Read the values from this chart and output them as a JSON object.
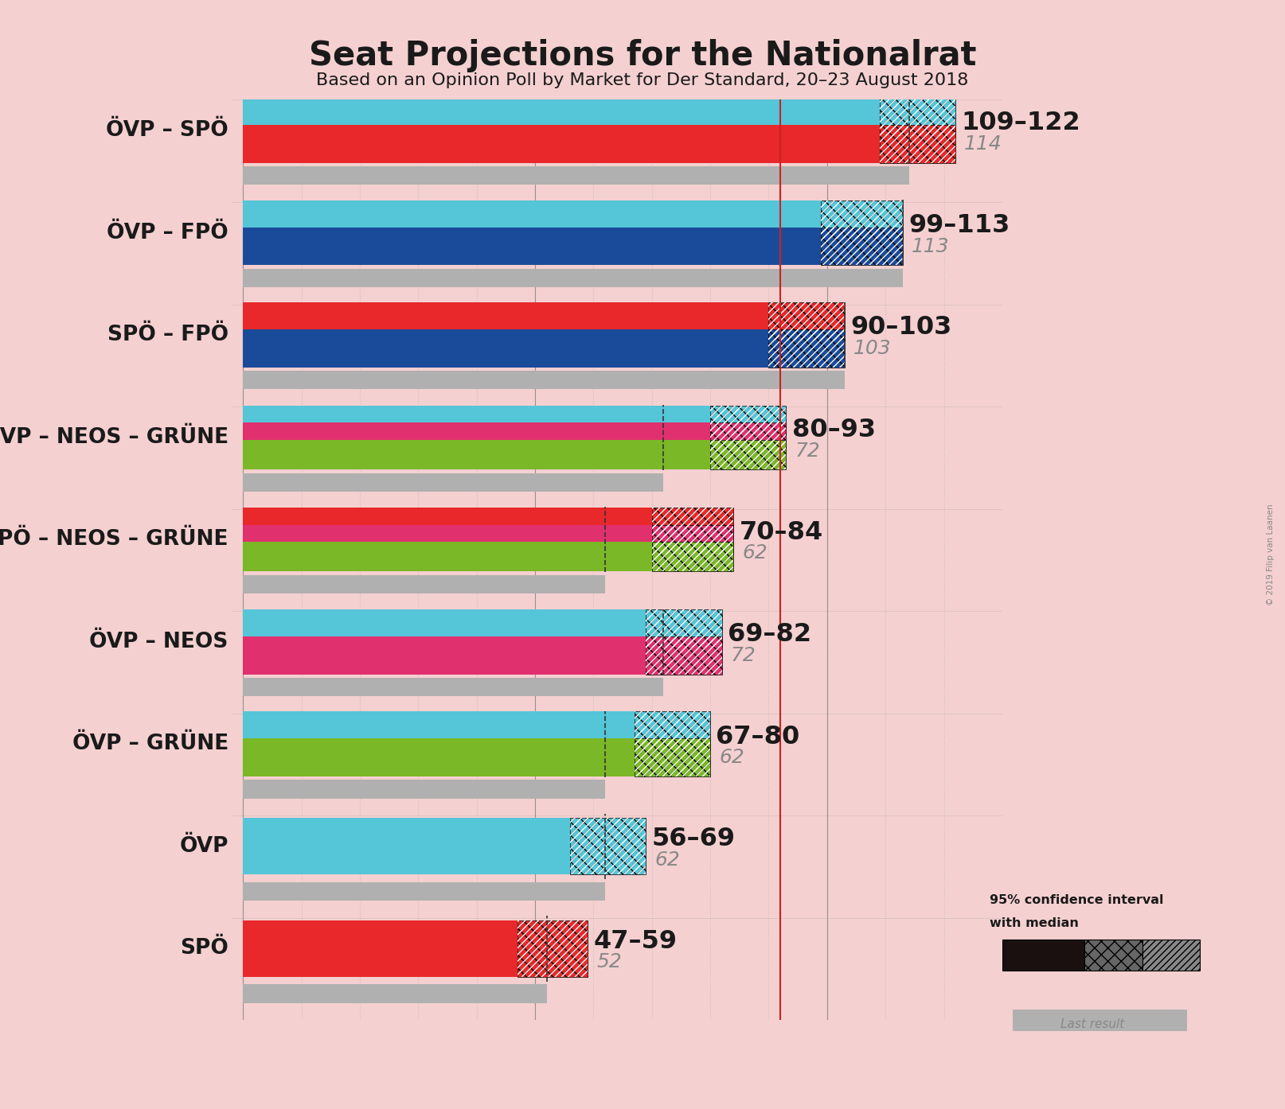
{
  "title": "Seat Projections for the Nationalrat",
  "subtitle": "Based on an Opinion Poll by Market for Der Standard, 20–23 August 2018",
  "copyright": "© 2019 Filip van Laanen",
  "background_color": "#f5d0d0",
  "coalitions": [
    {
      "name": "ÖVP – SPÖ",
      "ci_low": 109,
      "ci_high": 122,
      "median": 114,
      "last_result": 114,
      "parties": [
        "ÖVP",
        "SPÖ"
      ],
      "colors": [
        "#55c5d8",
        "#e8282a"
      ],
      "hatch_colors": [
        "#55c5d8",
        "#e8282a"
      ]
    },
    {
      "name": "ÖVP – FPÖ",
      "ci_low": 99,
      "ci_high": 113,
      "median": 113,
      "last_result": 113,
      "parties": [
        "ÖVP",
        "FPÖ"
      ],
      "colors": [
        "#55c5d8",
        "#1a4b9a"
      ],
      "hatch_colors": [
        "#55c5d8",
        "#1a4b9a"
      ]
    },
    {
      "name": "SPÖ – FPÖ",
      "ci_low": 90,
      "ci_high": 103,
      "median": 103,
      "last_result": 103,
      "parties": [
        "SPÖ",
        "FPÖ"
      ],
      "colors": [
        "#e8282a",
        "#1a4b9a"
      ],
      "hatch_colors": [
        "#e8282a",
        "#1a4b9a"
      ]
    },
    {
      "name": "ÖVP – NEOS – GRÜNE",
      "ci_low": 80,
      "ci_high": 93,
      "median": 72,
      "last_result": 72,
      "parties": [
        "ÖVP",
        "NEOS",
        "GRÜNE"
      ],
      "colors": [
        "#55c5d8",
        "#e0306e",
        "#7ab827"
      ],
      "hatch_colors": [
        "#55c5d8",
        "#e0306e",
        "#7ab827"
      ]
    },
    {
      "name": "SPÖ – NEOS – GRÜNE",
      "ci_low": 70,
      "ci_high": 84,
      "median": 62,
      "last_result": 62,
      "parties": [
        "SPÖ",
        "NEOS",
        "GRÜNE"
      ],
      "colors": [
        "#e8282a",
        "#e0306e",
        "#7ab827"
      ],
      "hatch_colors": [
        "#e8282a",
        "#e0306e",
        "#7ab827"
      ]
    },
    {
      "name": "ÖVP – NEOS",
      "ci_low": 69,
      "ci_high": 82,
      "median": 72,
      "last_result": 72,
      "parties": [
        "ÖVP",
        "NEOS"
      ],
      "colors": [
        "#55c5d8",
        "#e0306e"
      ],
      "hatch_colors": [
        "#55c5d8",
        "#e0306e"
      ]
    },
    {
      "name": "ÖVP – GRÜNE",
      "ci_low": 67,
      "ci_high": 80,
      "median": 62,
      "last_result": 62,
      "parties": [
        "ÖVP",
        "GRÜNE"
      ],
      "colors": [
        "#55c5d8",
        "#7ab827"
      ],
      "hatch_colors": [
        "#55c5d8",
        "#7ab827"
      ]
    },
    {
      "name": "ÖVP",
      "ci_low": 56,
      "ci_high": 69,
      "median": 62,
      "last_result": 62,
      "parties": [
        "ÖVP"
      ],
      "colors": [
        "#55c5d8"
      ],
      "hatch_colors": [
        "#55c5d8"
      ]
    },
    {
      "name": "SPÖ",
      "ci_low": 47,
      "ci_high": 59,
      "median": 52,
      "last_result": 52,
      "parties": [
        "SPÖ"
      ],
      "colors": [
        "#e8282a"
      ],
      "hatch_colors": [
        "#e8282a"
      ]
    }
  ],
  "xmin": 0,
  "xmax": 130,
  "majority_line": 92,
  "label_fontsize": 19,
  "title_fontsize": 30,
  "subtitle_fontsize": 16,
  "range_label_fontsize": 23,
  "median_label_fontsize": 18,
  "last_result_color": "#b0b0b0",
  "grid_color": "#b8b8b8",
  "dotted_grid_color": "#b8b8b8"
}
